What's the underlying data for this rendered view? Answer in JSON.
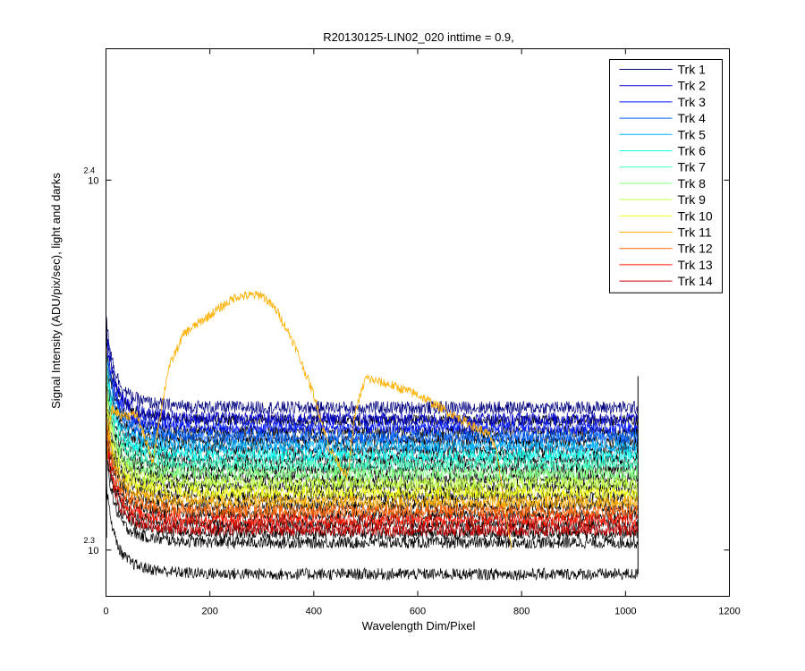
{
  "chart_data": {
    "type": "line",
    "title": "R20130125-LIN02_020 inttime = 0.9,",
    "xlabel": "Wavelength Dim/Pixel",
    "ylabel": "Signal Intensity (ADU/pix/sec), light and darks",
    "xlim": [
      0,
      1200
    ],
    "ylim_log10": [
      2.2875,
      2.4355
    ],
    "y_scale": "log",
    "x_ticks": [
      0,
      200,
      400,
      600,
      800,
      1000,
      1200
    ],
    "y_ticks": [
      {
        "base": "10",
        "exponent": "2.3",
        "log10": 2.3
      },
      {
        "base": "10",
        "exponent": "2.4",
        "log10": 2.4
      }
    ],
    "grid": false,
    "legend_position": "top-right",
    "series": [
      {
        "name": "Trk 1",
        "color": "#00007F"
      },
      {
        "name": "Trk 2",
        "color": "#0000C8"
      },
      {
        "name": "Trk 3",
        "color": "#0018FF"
      },
      {
        "name": "Trk 4",
        "color": "#0064FF"
      },
      {
        "name": "Trk 5",
        "color": "#00B0FF"
      },
      {
        "name": "Trk 6",
        "color": "#10FFEF"
      },
      {
        "name": "Trk 7",
        "color": "#40FFBF"
      },
      {
        "name": "Trk 8",
        "color": "#80FF80"
      },
      {
        "name": "Trk 9",
        "color": "#BFFF40"
      },
      {
        "name": "Trk 10",
        "color": "#EFFF10"
      },
      {
        "name": "Trk 11",
        "color": "#FFB000"
      },
      {
        "name": "Trk 12",
        "color": "#FF6400"
      },
      {
        "name": "Trk 13",
        "color": "#FF1800"
      },
      {
        "name": "Trk 14",
        "color": "#C80000"
      }
    ],
    "dark_level_log10": [
      2.3385,
      2.3355,
      2.333,
      2.3305,
      2.328,
      2.3255,
      2.323,
      2.3205,
      2.318,
      2.3155,
      2.313,
      2.3105,
      2.308,
      2.3055
    ],
    "light_track": {
      "name": "Trk 11",
      "x": [
        0,
        10,
        30,
        60,
        80,
        90,
        100,
        120,
        150,
        200,
        250,
        300,
        330,
        360,
        400,
        430,
        465,
        480,
        500,
        550,
        600,
        650,
        700,
        740,
        755,
        765,
        780
      ],
      "log10": [
        2.322,
        2.338,
        2.3365,
        2.3365,
        2.328,
        2.3235,
        2.333,
        2.349,
        2.3585,
        2.3635,
        2.3685,
        2.369,
        2.3645,
        2.3565,
        2.342,
        2.3275,
        2.3195,
        2.3375,
        2.3465,
        2.3445,
        2.342,
        2.338,
        2.334,
        2.331,
        2.3245,
        2.314,
        2.3003
      ]
    },
    "n_points": 1024
  }
}
